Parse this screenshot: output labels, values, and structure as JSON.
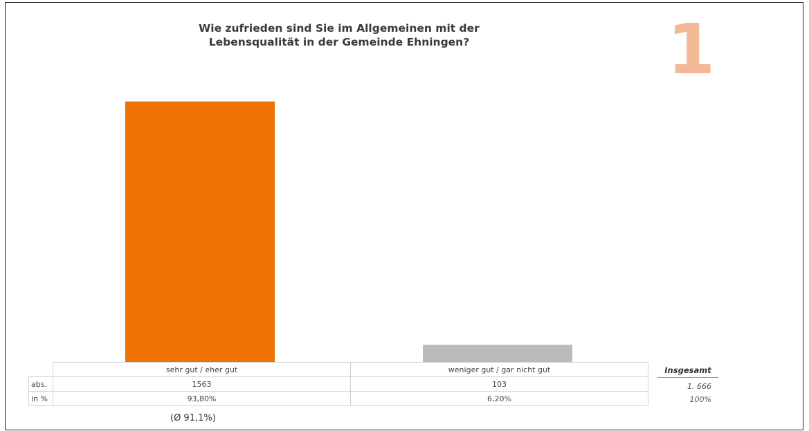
{
  "chart_data": {
    "type": "bar",
    "title": "Wie zufrieden sind Sie im Allgemeinen mit der Lebensqualität in der Gemeinde Ehningen?",
    "title_lines": [
      "Wie zufrieden sind Sie im Allgemeinen mit der",
      "Lebensqualität in der Gemeinde Ehningen?"
    ],
    "categories": [
      "sehr gut / eher gut",
      "weniger gut / gar nicht gut"
    ],
    "values": [
      93.8,
      6.2
    ],
    "colors": [
      "#ee7206",
      "#bababa"
    ],
    "ylim": [
      0,
      100
    ],
    "table": {
      "row_labels": [
        "abs.",
        "in %"
      ],
      "abs": [
        "1563",
        "103"
      ],
      "pct": [
        "93,80%",
        "6,20%"
      ]
    },
    "total": {
      "label": "Insgesamt",
      "abs": "1. 666",
      "pct": "100%"
    },
    "mean_note": "(Ø 91,1%)",
    "question_number": "1"
  }
}
